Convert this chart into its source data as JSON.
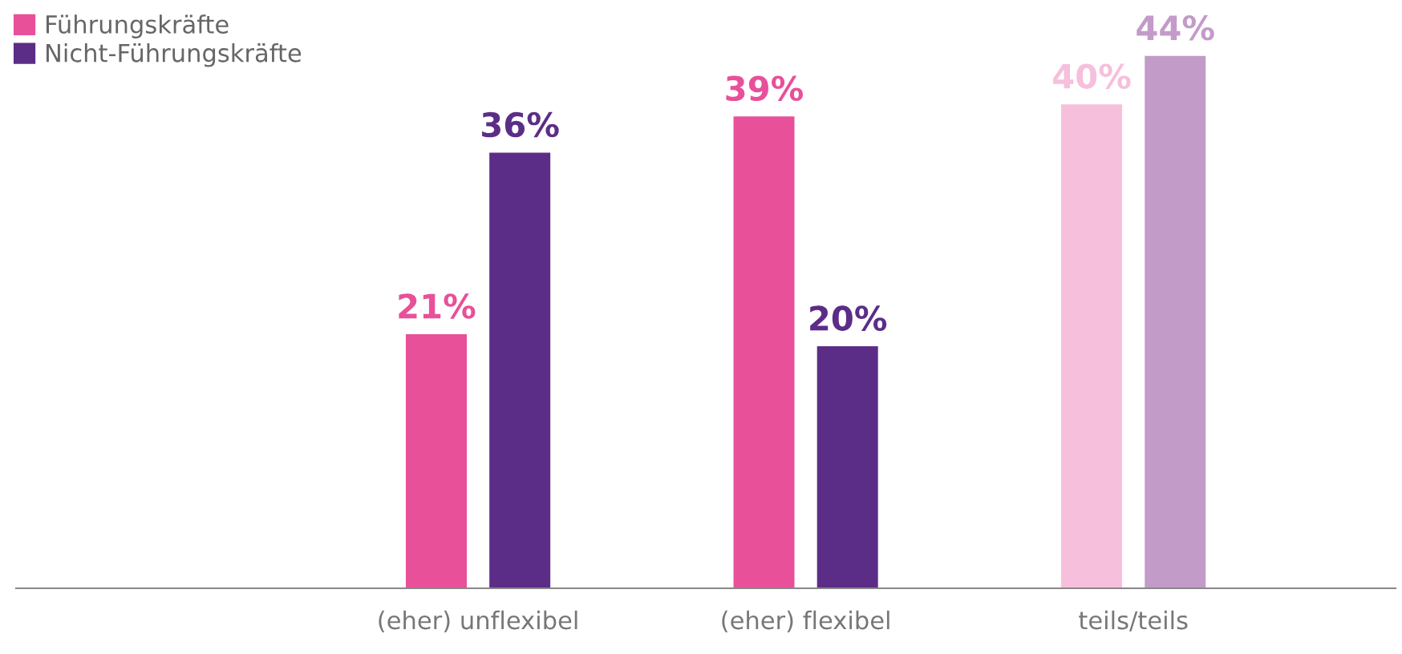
{
  "chart_data": {
    "type": "bar",
    "categories": [
      "(eher) unflexibel",
      "(eher) flexibel",
      "teils/teils"
    ],
    "series": [
      {
        "name": "Führungskräfte",
        "color": "#e8509a",
        "colors": [
          "#e8509a",
          "#e8509a",
          "#f6bfdc"
        ],
        "values": [
          21,
          39,
          40
        ],
        "value_labels": [
          "21%",
          "39%",
          "40%"
        ]
      },
      {
        "name": "Nicht-Führungskräfte",
        "color": "#5c2d87",
        "colors": [
          "#5c2d87",
          "#5c2d87",
          "#c39bc9"
        ],
        "values": [
          36,
          20,
          44
        ],
        "value_labels": [
          "36%",
          "20%",
          "44%"
        ]
      }
    ],
    "legend": "top left",
    "grid": false
  }
}
